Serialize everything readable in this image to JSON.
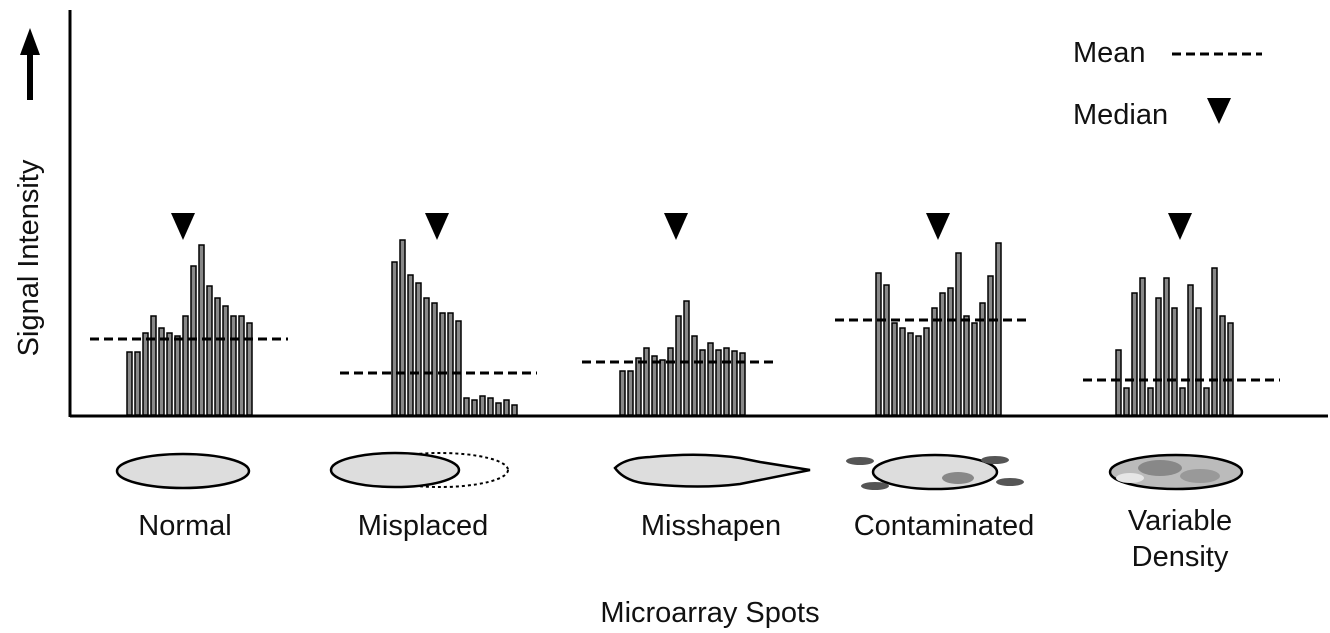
{
  "chart_data": {
    "type": "bar",
    "y_label": "Signal Intensity",
    "x_label": "Microarray Spots",
    "legend": {
      "mean": "Mean",
      "median": "Median"
    },
    "ylim": [
      0,
      405
    ],
    "groups": [
      {
        "name": "Normal",
        "values": [
          63,
          63,
          82,
          99,
          87,
          82,
          79,
          99,
          149,
          170,
          129,
          117,
          109,
          99,
          99,
          92
        ],
        "mean": 76
      },
      {
        "name": "Misplaced",
        "values": [
          153,
          175,
          140,
          132,
          117,
          112,
          102,
          102,
          94,
          17,
          15,
          19,
          17,
          12,
          15,
          10
        ],
        "mean": 42
      },
      {
        "name": "Misshapen",
        "values": [
          44,
          44,
          57,
          67,
          59,
          55,
          67,
          99,
          114,
          79,
          65,
          72,
          65,
          67,
          64,
          62
        ],
        "mean": 53
      },
      {
        "name": "Contaminated",
        "values": [
          142,
          130,
          92,
          87,
          82,
          79,
          87,
          107,
          122,
          127,
          162,
          99,
          92,
          112,
          139,
          172
        ],
        "mean": 95
      },
      {
        "name": "Variable Density",
        "values": [
          65,
          27,
          122,
          137,
          27,
          117,
          137,
          107,
          27,
          130,
          107,
          27,
          147,
          99,
          92
        ],
        "mean": 35
      }
    ]
  }
}
